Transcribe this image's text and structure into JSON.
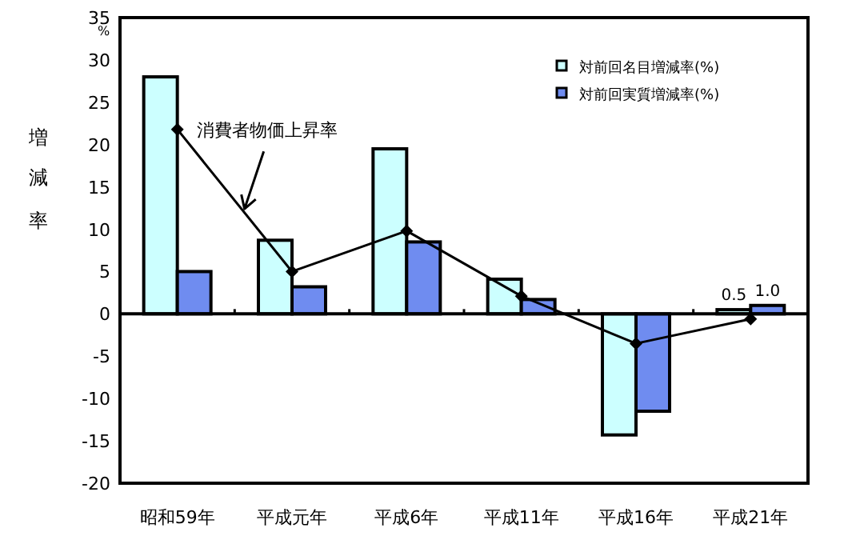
{
  "chart_data": {
    "type": "bar",
    "ylabel": "増減率",
    "annotations": [
      "%",
      "消費者物価上昇率"
    ],
    "categories": [
      "昭和59年",
      "平成元年",
      "平成6年",
      "平成11年",
      "平成16年",
      "平成21年"
    ],
    "series": [
      {
        "name": "対前回名目増減率(%)",
        "color": "#ccffff",
        "values": [
          28.0,
          8.7,
          19.5,
          4.1,
          -14.3,
          0.5
        ],
        "value_labels": [
          null,
          null,
          null,
          null,
          null,
          "0.5"
        ]
      },
      {
        "name": "対前回実質増減率(%)",
        "color": "#6f8cf0",
        "values": [
          5.0,
          3.2,
          8.5,
          1.7,
          -11.5,
          1.0
        ],
        "value_labels": [
          null,
          null,
          null,
          null,
          null,
          "1.0"
        ]
      },
      {
        "type": "line",
        "color": "#000000",
        "marker": "diamond",
        "values": [
          21.8,
          5.0,
          9.8,
          2.1,
          -3.5,
          -0.6
        ]
      }
    ],
    "ylim": [
      -20,
      35
    ],
    "yticks": [
      -20,
      -15,
      -10,
      -5,
      0,
      5,
      10,
      15,
      20,
      25,
      30,
      35
    ],
    "ref_lines": [
      {
        "axis": "y",
        "value": 0,
        "color": "#000000"
      }
    ],
    "legend": "top right"
  }
}
